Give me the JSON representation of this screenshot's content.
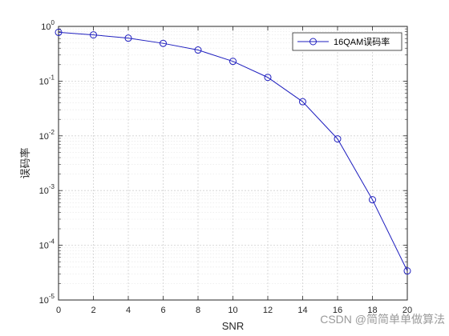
{
  "chart_data": {
    "type": "line",
    "y_scale": "log",
    "grid": true,
    "minor_grid": true,
    "xlabel": "SNR",
    "ylabel": "误码率",
    "xlim": [
      0,
      20
    ],
    "ylim": [
      1e-05,
      1
    ],
    "x_ticks": [
      0,
      2,
      4,
      6,
      8,
      10,
      12,
      14,
      16,
      18,
      20
    ],
    "y_ticks": [
      1e-05,
      0.0001,
      0.001,
      0.01,
      0.1,
      1
    ],
    "y_tick_labels": [
      {
        "base": "10",
        "exp": "-5"
      },
      {
        "base": "10",
        "exp": "-4"
      },
      {
        "base": "10",
        "exp": "-3"
      },
      {
        "base": "10",
        "exp": "-2"
      },
      {
        "base": "10",
        "exp": "-1"
      },
      {
        "base": "10",
        "exp": "0"
      }
    ],
    "legend_position": "top-right",
    "series": [
      {
        "name": "16QAM误码率",
        "color": "#1f1fbf",
        "marker": "circle",
        "x": [
          0,
          2,
          4,
          6,
          8,
          10,
          12,
          14,
          16,
          18,
          20
        ],
        "y": [
          0.78,
          0.7,
          0.61,
          0.49,
          0.37,
          0.23,
          0.117,
          0.042,
          0.0088,
          0.00068,
          3.4e-05
        ]
      }
    ]
  },
  "watermark": "CSDN @简简单单做算法"
}
